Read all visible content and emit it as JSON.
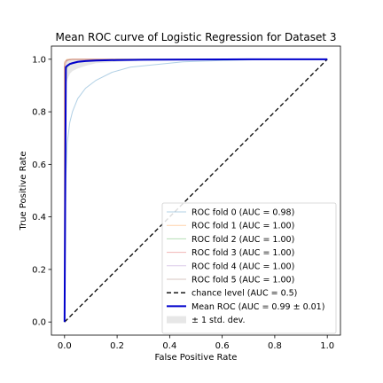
{
  "chart_data": {
    "type": "line",
    "title": "Mean ROC curve of Logistic Regression for Dataset 3",
    "xlabel": "False Positive Rate",
    "ylabel": "True Positive Rate",
    "xlim": [
      -0.05,
      1.05
    ],
    "ylim": [
      -0.05,
      1.05
    ],
    "xticks": [
      "0.0",
      "0.2",
      "0.4",
      "0.6",
      "0.8",
      "1.0"
    ],
    "yticks": [
      "0.0",
      "0.2",
      "0.4",
      "0.6",
      "0.8",
      "1.0"
    ],
    "grid": false,
    "legend_position": "lower-right",
    "series": [
      {
        "name": "ROC fold 0 (AUC = 0.98)",
        "color": "#1f77b4",
        "x": [
          0,
          0.005,
          0.01,
          0.02,
          0.03,
          0.05,
          0.08,
          0.12,
          0.18,
          0.25,
          0.35,
          0.45,
          0.6,
          0.8,
          1.0
        ],
        "y": [
          0,
          0.55,
          0.68,
          0.76,
          0.8,
          0.85,
          0.89,
          0.92,
          0.95,
          0.97,
          0.98,
          0.99,
          0.995,
          1.0,
          1.0
        ]
      },
      {
        "name": "ROC fold 1 (AUC = 1.00)",
        "color": "#ff7f0e",
        "x": [
          0,
          0.0,
          0.005,
          0.01,
          1.0
        ],
        "y": [
          0,
          0.99,
          0.995,
          1.0,
          1.0
        ]
      },
      {
        "name": "ROC fold 2 (AUC = 1.00)",
        "color": "#2ca02c",
        "x": [
          0,
          0.003,
          0.01,
          0.02,
          0.05,
          0.1,
          0.2,
          1.0
        ],
        "y": [
          0,
          0.95,
          0.97,
          0.98,
          0.99,
          0.995,
          1.0,
          1.0
        ]
      },
      {
        "name": "ROC fold 3 (AUC = 1.00)",
        "color": "#d62728",
        "x": [
          0,
          0.0,
          0.004,
          0.01,
          0.03,
          1.0
        ],
        "y": [
          0,
          0.97,
          0.985,
          0.995,
          1.0,
          1.0
        ]
      },
      {
        "name": "ROC fold 4 (AUC = 1.00)",
        "color": "#9467bd",
        "x": [
          0,
          0.003,
          0.01,
          0.02,
          0.06,
          0.15,
          1.0
        ],
        "y": [
          0,
          0.96,
          0.975,
          0.985,
          0.995,
          1.0,
          1.0
        ]
      },
      {
        "name": "ROC fold 5 (AUC = 1.00)",
        "color": "#8c564b",
        "x": [
          0,
          0.0,
          0.006,
          0.02,
          1.0
        ],
        "y": [
          0,
          0.985,
          0.995,
          1.0,
          1.0
        ]
      }
    ],
    "chance": {
      "name": "chance level (AUC = 0.5)",
      "color": "#000000",
      "x": [
        0,
        1
      ],
      "y": [
        0,
        1
      ]
    },
    "mean": {
      "name": "Mean ROC (AUC = 0.99 ± 0.01)",
      "color": "#0000cc",
      "x": [
        0,
        0.005,
        0.01,
        0.02,
        0.03,
        0.05,
        0.08,
        0.12,
        0.2,
        0.3,
        0.5,
        0.7,
        1.0
      ],
      "y": [
        0,
        0.97,
        0.975,
        0.982,
        0.985,
        0.99,
        0.993,
        0.995,
        0.997,
        0.998,
        0.999,
        1.0,
        1.0
      ]
    },
    "band": {
      "name": "± 1 std. dev.",
      "color": "#888888",
      "x": [
        0,
        0.005,
        0.01,
        0.02,
        0.03,
        0.05,
        0.08,
        0.12,
        0.2,
        0.3,
        0.5,
        0.7,
        1.0
      ],
      "upper": [
        0,
        1.0,
        1.0,
        1.0,
        1.0,
        1.0,
        1.0,
        1.0,
        1.0,
        1.0,
        1.0,
        1.0,
        1.0
      ],
      "lower": [
        0,
        0.9,
        0.92,
        0.945,
        0.955,
        0.965,
        0.975,
        0.985,
        0.99,
        0.995,
        0.998,
        1.0,
        1.0
      ]
    }
  }
}
